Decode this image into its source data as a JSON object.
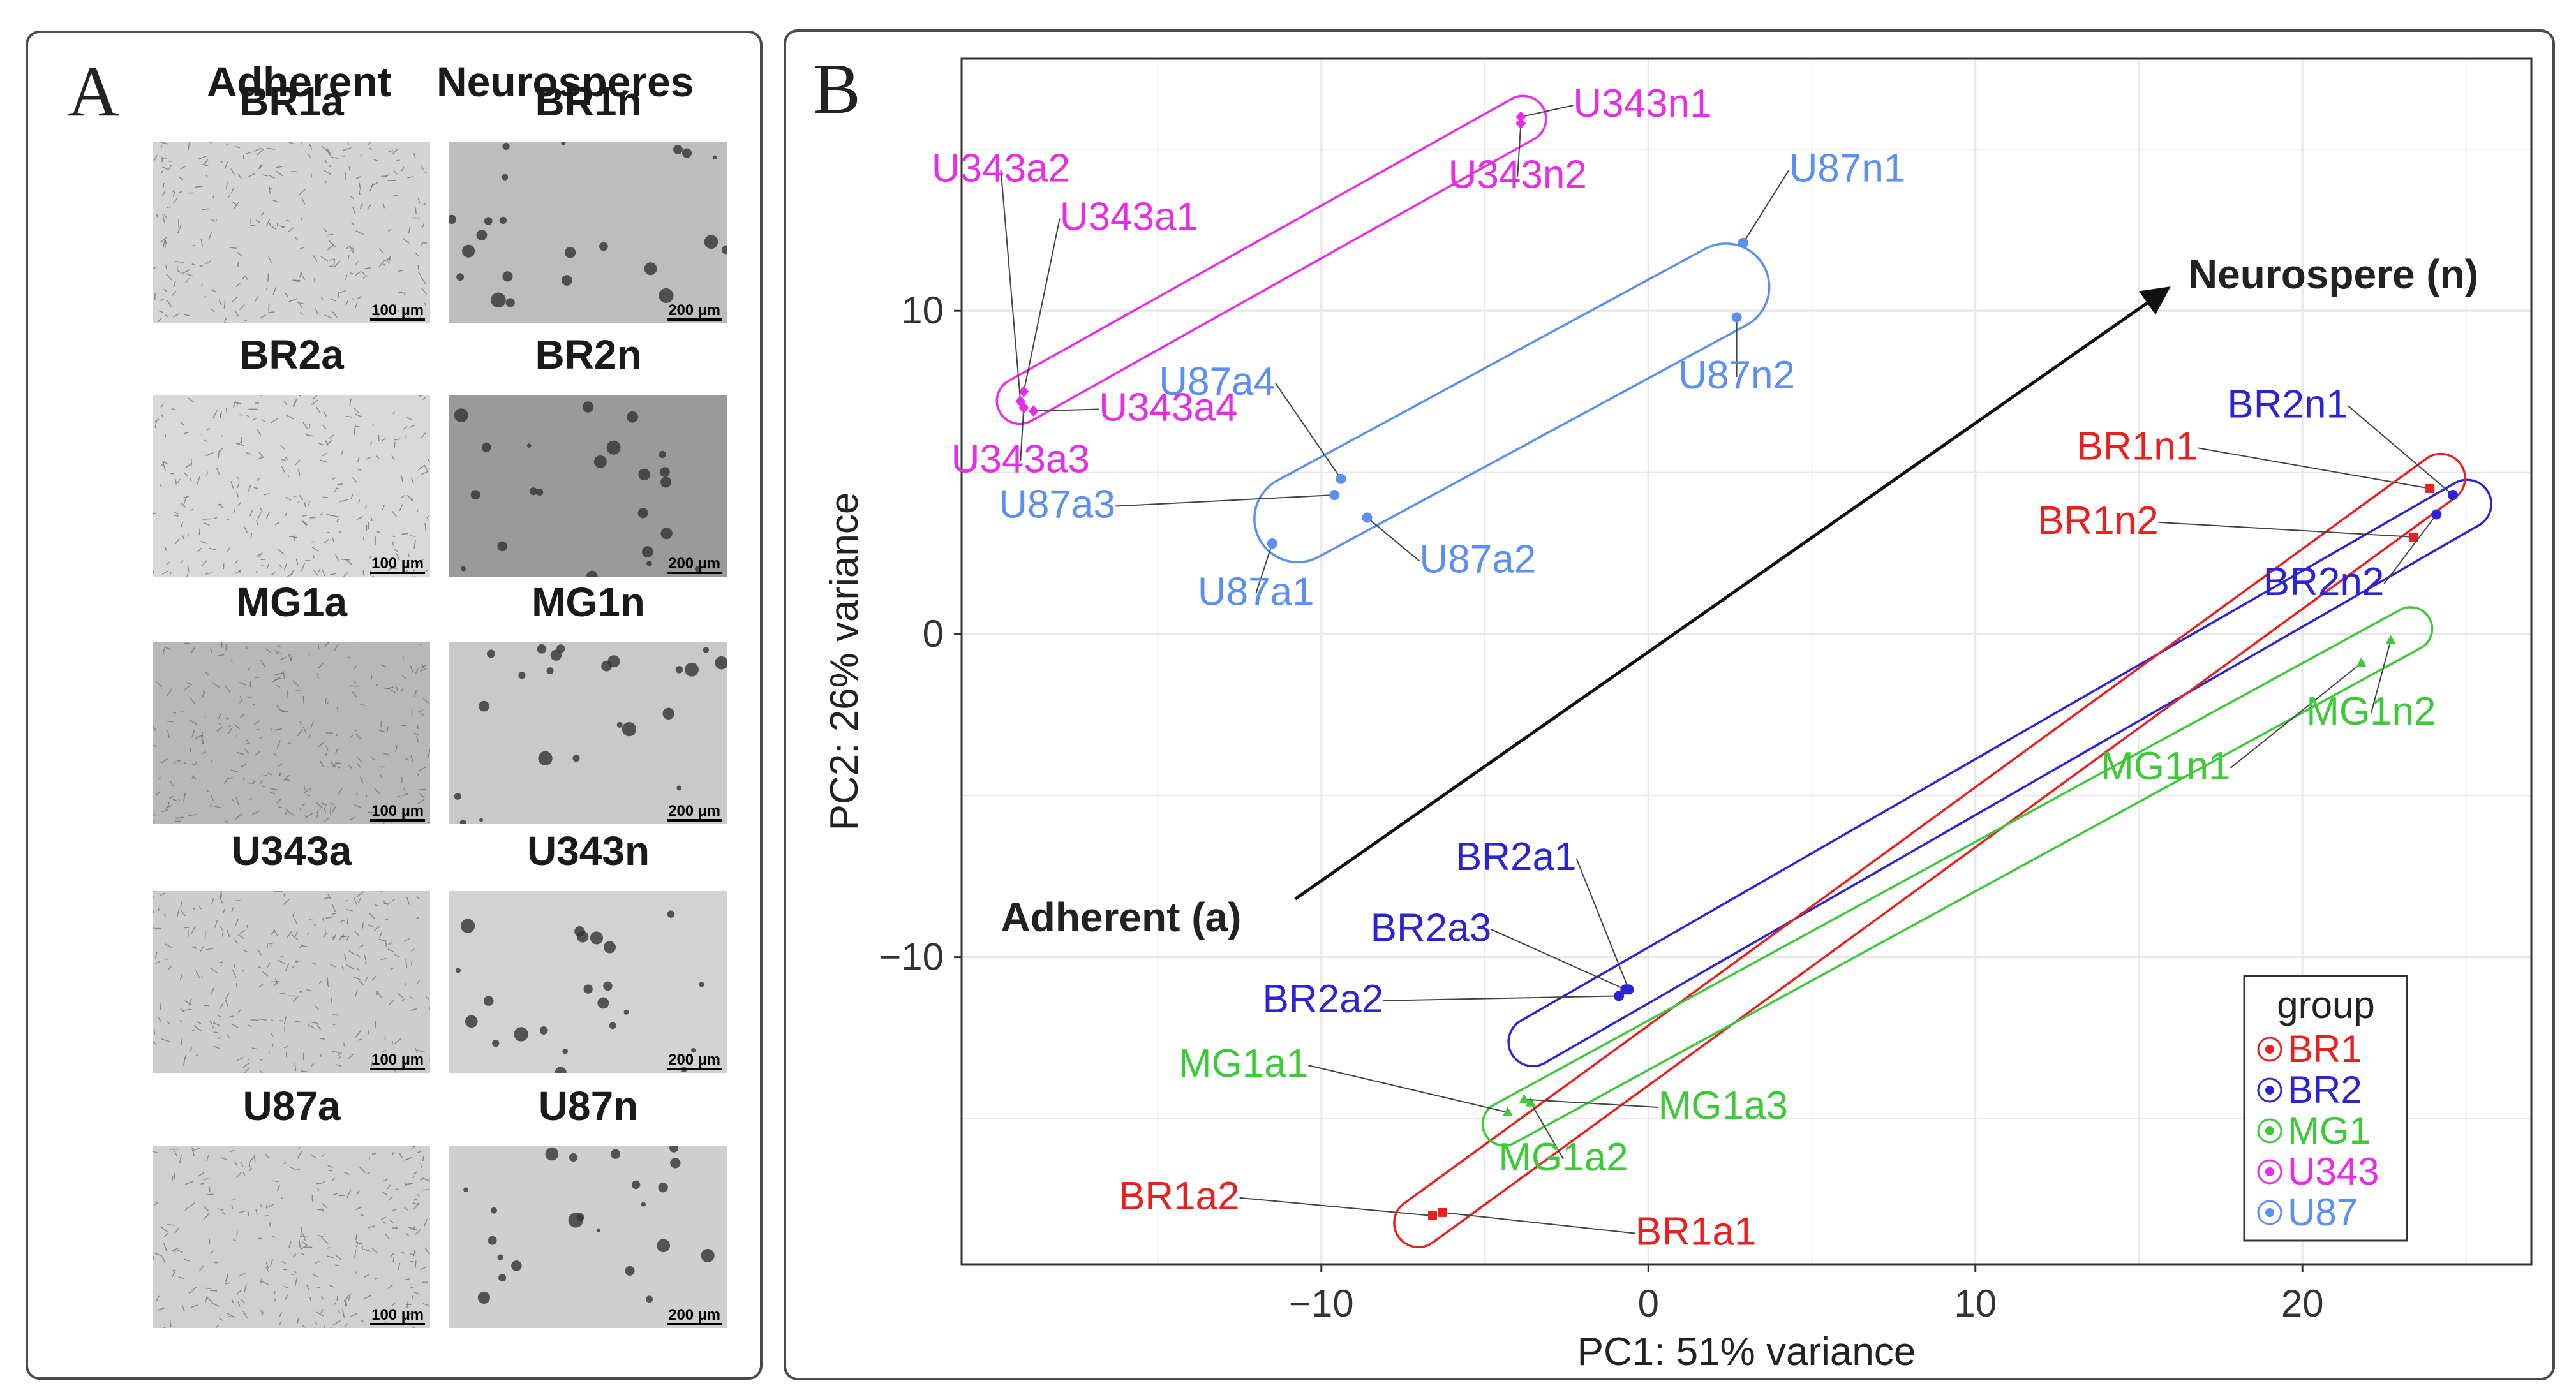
{
  "panel_a": {
    "letter": "A",
    "headers": {
      "adherent": "Adherent",
      "neurospheres": "Neurosperes"
    },
    "rows": [
      {
        "adherent": {
          "label": "BR1a",
          "scale": "100 µm"
        },
        "neurosphere": {
          "label": "BR1n",
          "scale": "200 µm"
        }
      },
      {
        "adherent": {
          "label": "BR2a",
          "scale": "100 µm"
        },
        "neurosphere": {
          "label": "BR2n",
          "scale": "200 µm"
        }
      },
      {
        "adherent": {
          "label": "MG1a",
          "scale": "100 µm"
        },
        "neurosphere": {
          "label": "MG1n",
          "scale": "200 µm"
        }
      },
      {
        "adherent": {
          "label": "U343a",
          "scale": "100 µm"
        },
        "neurosphere": {
          "label": "U343n",
          "scale": "200 µm"
        }
      },
      {
        "adherent": {
          "label": "U87a",
          "scale": "100 µm"
        },
        "neurosphere": {
          "label": "U87n",
          "scale": "200 µm"
        }
      }
    ]
  },
  "panel_b": {
    "letter": "B"
  },
  "colors": {
    "BR1": "#e8201f",
    "BR2": "#2b24d6",
    "MG1": "#3ec93a",
    "U343": "#e62ee6",
    "U87": "#5b8ff0",
    "arrow": "#111111"
  },
  "chart_data": {
    "type": "scatter",
    "title": "",
    "xlabel": "PC1: 51% variance",
    "ylabel": "PC2: 26% variance",
    "xlim": [
      -21,
      27
    ],
    "ylim": [
      -19.5,
      17.8
    ],
    "xticks": [
      -10,
      0,
      10,
      20
    ],
    "yticks": [
      -10,
      0,
      10
    ],
    "xtick_labels": [
      "−10",
      "0",
      "10",
      "20"
    ],
    "ytick_labels": [
      "−10",
      "0",
      "10"
    ],
    "grid": true,
    "legend": {
      "title": "group",
      "position": "bottom-right",
      "entries": [
        "BR1",
        "BR2",
        "MG1",
        "U343",
        "U87"
      ]
    },
    "series": [
      {
        "name": "BR1",
        "points": [
          {
            "label": "BR1a1",
            "x": -6.3,
            "y": -17.9,
            "lx": -0.4,
            "ly": -18.9
          },
          {
            "label": "BR1a2",
            "x": -6.6,
            "y": -18.0,
            "lx": -12.5,
            "ly": -17.8
          },
          {
            "label": "BR1n1",
            "x": 23.9,
            "y": 4.5,
            "lx": 16.8,
            "ly": 5.4
          },
          {
            "label": "BR1n2",
            "x": 23.4,
            "y": 3.0,
            "lx": 15.6,
            "ly": 3.1
          }
        ]
      },
      {
        "name": "BR2",
        "points": [
          {
            "label": "BR2a1",
            "x": -0.6,
            "y": -11.0,
            "lx": -2.2,
            "ly": -7.3
          },
          {
            "label": "BR2a2",
            "x": -0.9,
            "y": -11.2,
            "lx": -8.1,
            "ly": -11.7
          },
          {
            "label": "BR2a3",
            "x": -0.7,
            "y": -11.0,
            "lx": -4.8,
            "ly": -9.5
          },
          {
            "label": "BR2n1",
            "x": 24.6,
            "y": 4.3,
            "lx": 21.4,
            "ly": 6.7
          },
          {
            "label": "BR2n2",
            "x": 24.1,
            "y": 3.7,
            "lx": 22.5,
            "ly": 1.2
          }
        ]
      },
      {
        "name": "MG1",
        "points": [
          {
            "label": "MG1a1",
            "x": -4.3,
            "y": -14.8,
            "lx": -10.4,
            "ly": -13.7
          },
          {
            "label": "MG1a2",
            "x": -3.6,
            "y": -14.5,
            "lx": -2.6,
            "ly": -16.6
          },
          {
            "label": "MG1a3",
            "x": -3.8,
            "y": -14.4,
            "lx": 0.3,
            "ly": -15.0
          },
          {
            "label": "MG1n1",
            "x": 21.8,
            "y": -0.9,
            "lx": 17.8,
            "ly": -4.5
          },
          {
            "label": "MG1n2",
            "x": 22.7,
            "y": -0.2,
            "lx": 22.1,
            "ly": -2.8
          }
        ]
      },
      {
        "name": "U343",
        "points": [
          {
            "label": "U343a1",
            "x": -19.1,
            "y": 7.5,
            "lx": -18.0,
            "ly": 12.5
          },
          {
            "label": "U343a2",
            "x": -19.2,
            "y": 7.2,
            "lx": -19.8,
            "ly": 14.0
          },
          {
            "label": "U343a3",
            "x": -19.1,
            "y": 7.0,
            "lx": -19.2,
            "ly": 5.0
          },
          {
            "label": "U343a4",
            "x": -18.8,
            "y": 6.9,
            "lx": -16.8,
            "ly": 6.6
          },
          {
            "label": "U343n1",
            "x": -3.9,
            "y": 16.0,
            "lx": -2.3,
            "ly": 16.0
          },
          {
            "label": "U343n2",
            "x": -3.9,
            "y": 15.8,
            "lx": -4.0,
            "ly": 13.8
          }
        ]
      },
      {
        "name": "U87",
        "points": [
          {
            "label": "U87a1",
            "x": -11.5,
            "y": 2.8,
            "lx": -12.0,
            "ly": 0.9
          },
          {
            "label": "U87a2",
            "x": -8.6,
            "y": 3.6,
            "lx": -7.0,
            "ly": 1.9
          },
          {
            "label": "U87a3",
            "x": -9.6,
            "y": 4.3,
            "lx": -16.3,
            "ly": 3.6
          },
          {
            "label": "U87a4",
            "x": -9.4,
            "y": 4.8,
            "lx": -11.4,
            "ly": 7.4
          },
          {
            "label": "U87n1",
            "x": 2.9,
            "y": 12.1,
            "lx": 4.3,
            "ly": 14.0
          },
          {
            "label": "U87n2",
            "x": 2.7,
            "y": 9.8,
            "lx": 2.7,
            "ly": 7.6
          }
        ]
      }
    ],
    "annotations": [
      {
        "name": "adherent",
        "text": "Adherent (a)",
        "x": -19.8,
        "y": -9.2
      },
      {
        "name": "neurosphere",
        "text": "Neurospere (n)",
        "x": 16.5,
        "y": 10.7
      }
    ],
    "arrow": {
      "from": [
        -10.8,
        -8.2
      ],
      "to": [
        15.9,
        10.7
      ]
    }
  }
}
